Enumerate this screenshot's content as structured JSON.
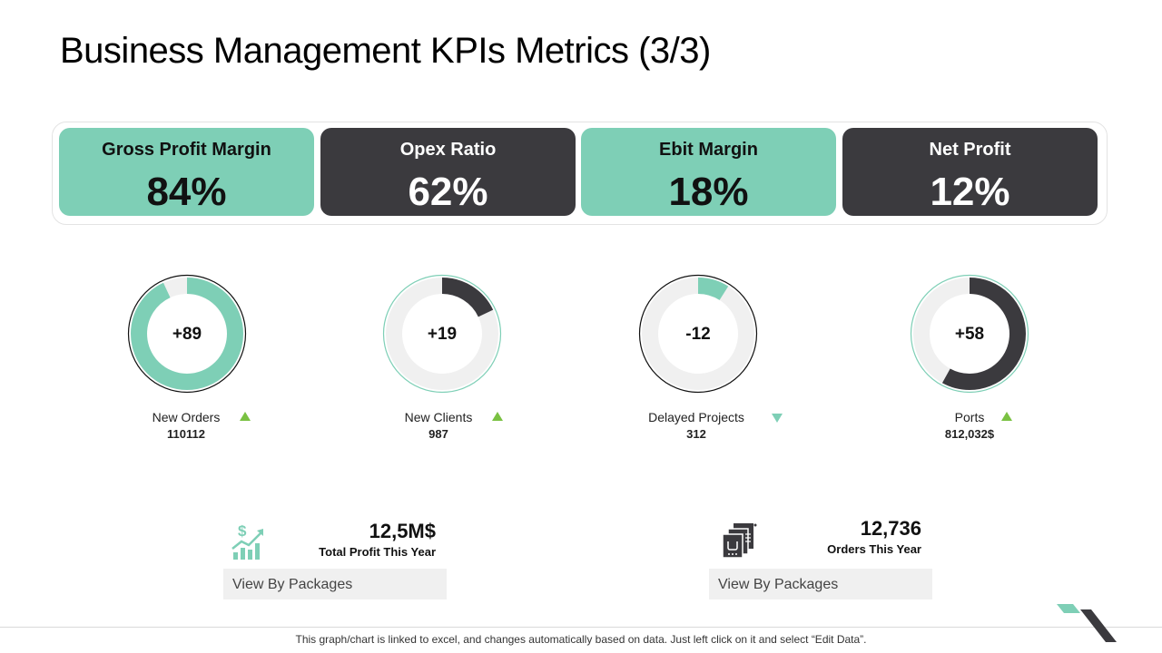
{
  "slide": {
    "title": "Business Management KPIs Metrics (3/3)",
    "footer": "This graph/chart is linked to excel, and changes automatically based on data. Just left click on it and select “Edit Data”."
  },
  "kpis": [
    {
      "label": "Gross Profit Margin",
      "value": "84%"
    },
    {
      "label": "Opex Ratio",
      "value": "62%"
    },
    {
      "label": "Ebit Margin",
      "value": "18%"
    },
    {
      "label": "Net Profit",
      "value": "12%"
    }
  ],
  "gauges": [
    {
      "value": "+89",
      "label": "New Orders",
      "number": "110112",
      "trend": "up",
      "fill_fraction": 0.93,
      "color": "#7ecfb6"
    },
    {
      "value": "+19",
      "label": "New Clients",
      "number": "987",
      "trend": "up",
      "fill_fraction": 0.18,
      "color": "#3b3a3e"
    },
    {
      "value": "-12",
      "label": "Delayed Projects",
      "number": "312",
      "trend": "down",
      "fill_fraction": 0.09,
      "color": "#7ecfb6"
    },
    {
      "value": "+58",
      "label": "Ports",
      "number": "812,032$",
      "trend": "up",
      "fill_fraction": 0.58,
      "color": "#3b3a3e"
    }
  ],
  "summary": [
    {
      "value": "12,5M$",
      "label": "Total Profit This Year",
      "button": "View By Packages",
      "icon": "chart-growth-dollar-icon"
    },
    {
      "value": "12,736",
      "label": "Orders This Year",
      "button": "View By Packages",
      "icon": "order-forms-icon"
    }
  ],
  "colors": {
    "teal": "#7ecfb6",
    "dark": "#3b3a3e",
    "track": "#f0f0f0",
    "up": "#7ac142"
  }
}
